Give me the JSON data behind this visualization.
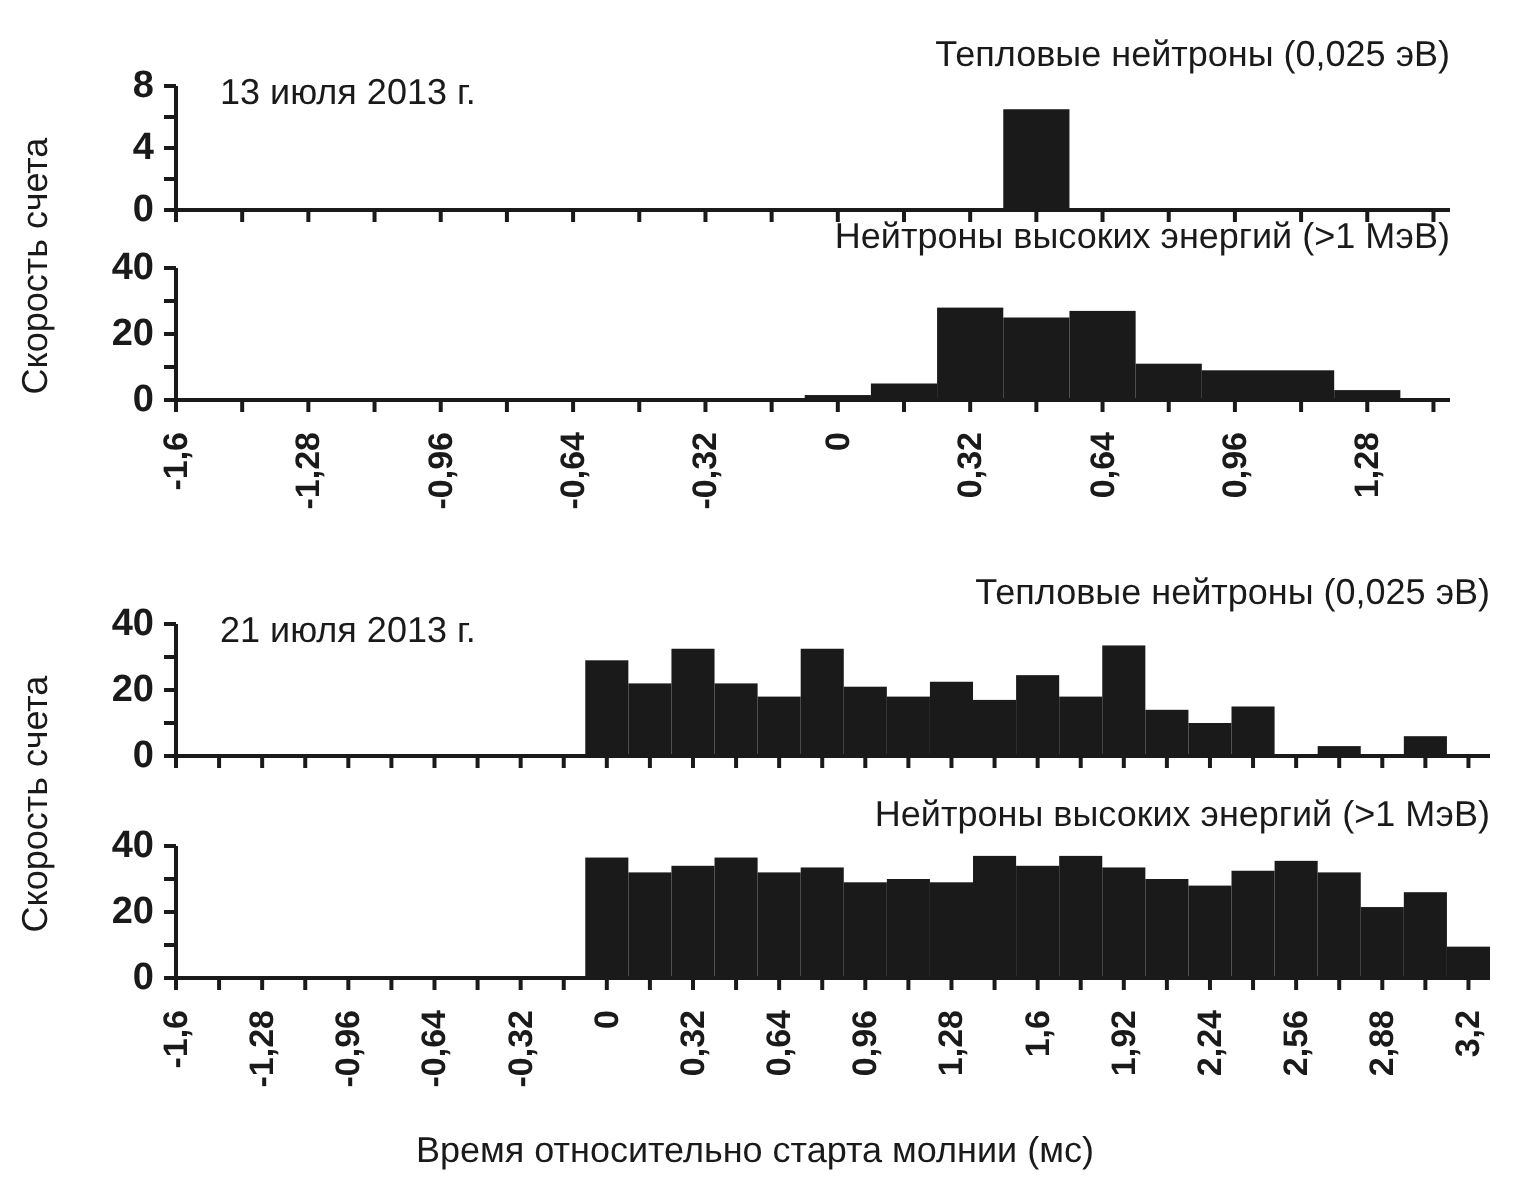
{
  "chart_data": [
    {
      "type": "histogram",
      "title": "Тепловые нейтроны (0,025 эВ)",
      "ylabel": "Скорость счета",
      "annotations": [
        "13 июля 2013 г."
      ],
      "color": "#1a1a1a",
      "bins": [
        0.4,
        0.56
      ],
      "values": [
        6.5
      ],
      "xlim": [
        -1.6,
        1.48
      ],
      "ylim": [
        0,
        8
      ],
      "yticks": [
        0,
        {
          "value": 2,
          "label": null
        },
        4,
        {
          "value": 6,
          "label": null
        },
        8
      ],
      "tick_labels": "y"
    },
    {
      "type": "histogram",
      "title": "Нейтроны высоких энергий (>1 МэВ)",
      "color": "#1a1a1a",
      "bins": [
        -0.08,
        0.08,
        0.24,
        0.4,
        0.56,
        0.72,
        0.88,
        1.04,
        1.2,
        1.36
      ],
      "values": [
        1.5,
        5,
        28,
        25,
        27,
        11,
        9,
        9,
        3
      ],
      "xlim": [
        -1.6,
        1.48
      ],
      "ylim": [
        0,
        40
      ],
      "yticks": [
        0,
        {
          "value": 10,
          "label": null
        },
        20,
        {
          "value": 30,
          "label": null
        },
        40
      ],
      "xticks": [
        {
          "value": -1.6,
          "label": "-1,6"
        },
        {
          "value": -1.44,
          "label": null
        },
        {
          "value": -1.28,
          "label": "-1,28"
        },
        {
          "value": -1.12,
          "label": null
        },
        {
          "value": -0.96,
          "label": "-0,96"
        },
        {
          "value": -0.8,
          "label": null
        },
        {
          "value": -0.64,
          "label": "-0,64"
        },
        {
          "value": -0.48,
          "label": null
        },
        {
          "value": -0.32,
          "label": "-0,32"
        },
        {
          "value": -0.16,
          "label": null
        },
        {
          "value": 0,
          "label": "0"
        },
        {
          "value": 0.16,
          "label": null
        },
        {
          "value": 0.32,
          "label": "0,32"
        },
        {
          "value": 0.48,
          "label": null
        },
        {
          "value": 0.64,
          "label": "0,64"
        },
        {
          "value": 0.8,
          "label": null
        },
        {
          "value": 0.96,
          "label": "0,96"
        },
        {
          "value": 1.12,
          "label": null
        },
        {
          "value": 1.28,
          "label": "1,28"
        },
        {
          "value": 1.44,
          "label": null
        }
      ]
    },
    {
      "type": "histogram",
      "title": "Тепловые нейтроны (0,025 эВ)",
      "ylabel": "Скорость счета",
      "annotations": [
        "21 июля 2013 г."
      ],
      "color": "#1a1a1a",
      "bins": [
        -0.08,
        0.08,
        0.24,
        0.4,
        0.56,
        0.72,
        0.88,
        1.04,
        1.2,
        1.36,
        1.52,
        1.68,
        1.84,
        2.0,
        2.16,
        2.32,
        2.48,
        2.64,
        2.8,
        2.96,
        3.12,
        3.28
      ],
      "values": [
        29,
        22,
        32.5,
        22,
        18,
        32.5,
        21,
        18,
        22.5,
        17,
        24.5,
        18,
        33.5,
        14,
        10,
        15,
        0,
        3,
        0,
        6,
        0
      ],
      "xlim": [
        -1.6,
        3.28
      ],
      "ylim": [
        0,
        40
      ],
      "yticks": [
        0,
        {
          "value": 10,
          "label": null
        },
        20,
        {
          "value": 30,
          "label": null
        },
        40
      ],
      "tick_labels": "y"
    },
    {
      "type": "histogram",
      "title": "Нейтроны высоких энергий (>1 МэВ)",
      "xlabel": "Время относительно старта молнии (мс)",
      "color": "#1a1a1a",
      "bins": [
        -0.08,
        0.08,
        0.24,
        0.4,
        0.56,
        0.72,
        0.88,
        1.04,
        1.2,
        1.36,
        1.52,
        1.68,
        1.84,
        2.0,
        2.16,
        2.32,
        2.48,
        2.64,
        2.8,
        2.96,
        3.12,
        3.28
      ],
      "values": [
        36.5,
        32,
        34,
        36.5,
        32,
        33.5,
        29,
        30,
        29,
        37,
        34,
        37,
        33.5,
        30,
        28,
        32.5,
        35.5,
        32,
        21.5,
        26,
        9.5
      ],
      "xlim": [
        -1.6,
        3.28
      ],
      "ylim": [
        0,
        40
      ],
      "yticks": [
        0,
        {
          "value": 10,
          "label": null
        },
        20,
        {
          "value": 30,
          "label": null
        },
        40
      ],
      "xticks": [
        {
          "value": -1.6,
          "label": "-1,6"
        },
        {
          "value": -1.44,
          "label": null
        },
        {
          "value": -1.28,
          "label": "-1,28"
        },
        {
          "value": -1.12,
          "label": null
        },
        {
          "value": -0.96,
          "label": "-0,96"
        },
        {
          "value": -0.8,
          "label": null
        },
        {
          "value": -0.64,
          "label": "-0,64"
        },
        {
          "value": -0.48,
          "label": null
        },
        {
          "value": -0.32,
          "label": "-0,32"
        },
        {
          "value": -0.16,
          "label": null
        },
        {
          "value": 0,
          "label": "0"
        },
        {
          "value": 0.16,
          "label": null
        },
        {
          "value": 0.32,
          "label": "0,32"
        },
        {
          "value": 0.48,
          "label": null
        },
        {
          "value": 0.64,
          "label": "0,64"
        },
        {
          "value": 0.8,
          "label": null
        },
        {
          "value": 0.96,
          "label": "0,96"
        },
        {
          "value": 1.12,
          "label": null
        },
        {
          "value": 1.28,
          "label": "1,28"
        },
        {
          "value": 1.44,
          "label": null
        },
        {
          "value": 1.6,
          "label": "1,6"
        },
        {
          "value": 1.76,
          "label": null
        },
        {
          "value": 1.92,
          "label": "1,92"
        },
        {
          "value": 2.08,
          "label": null
        },
        {
          "value": 2.24,
          "label": "2,24"
        },
        {
          "value": 2.4,
          "label": null
        },
        {
          "value": 2.56,
          "label": "2,56"
        },
        {
          "value": 2.72,
          "label": null
        },
        {
          "value": 2.88,
          "label": "2,88"
        },
        {
          "value": 3.04,
          "label": null
        },
        {
          "value": 3.2,
          "label": "3,2"
        }
      ]
    }
  ]
}
